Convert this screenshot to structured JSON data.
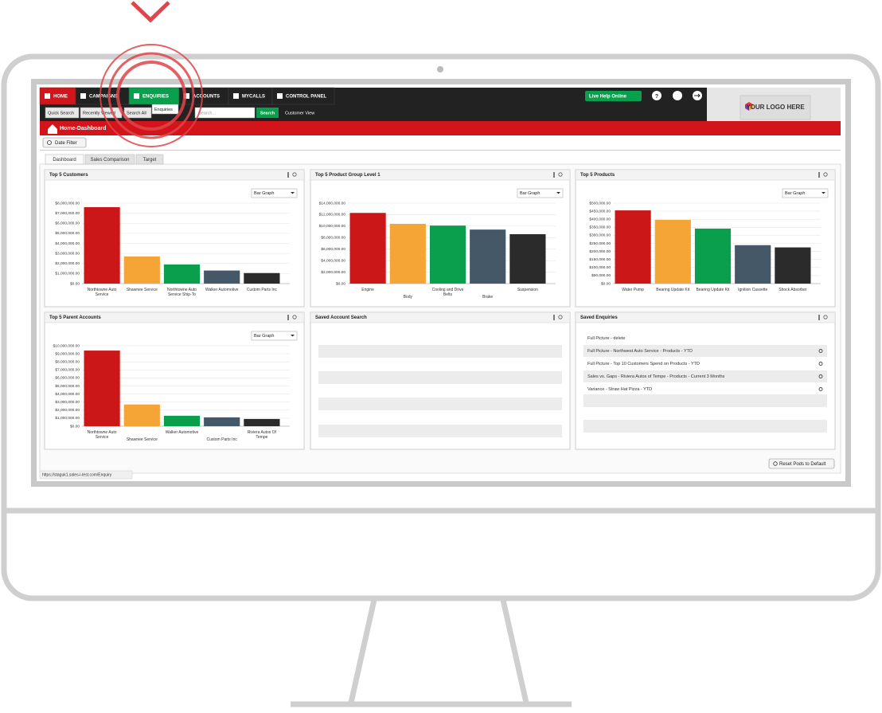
{
  "nav": {
    "items": [
      "HOME",
      "CAMPAIGNS",
      "ENQUIRIES",
      "ACCOUNTS",
      "MYCALLS",
      "CONTROL PANEL"
    ],
    "live_help": "Live Help Online",
    "tooltip": "Enquiries",
    "logo": "YOUR LOGO HERE"
  },
  "search": {
    "quick": "Quick Search",
    "recent": "Recently Viewed",
    "all": "Search All",
    "placeholder": "Search...",
    "button": "Search",
    "customer_view": "Customer View"
  },
  "breadcrumb": "Home-Dashboard",
  "date_filter": "Date Filter",
  "tabs": [
    "Dashboard",
    "Sales Comparison",
    "Target"
  ],
  "dropdown": "Bar Graph",
  "chart_data": [
    {
      "type": "bar",
      "title": "Top 5 Customers",
      "categories": [
        "Northtowne Auto Service",
        "Shawnee Service",
        "Northtowne Auto Service Ship-To",
        "Walker Automotive",
        "Custom Parts Inc"
      ],
      "values": [
        7600000,
        2700000,
        1900000,
        1300000,
        1050000
      ],
      "colors": [
        "#cc1719",
        "#f4a535",
        "#0a9f4c",
        "#455868",
        "#2b2b2b"
      ],
      "ylim": [
        0,
        8000000
      ],
      "yticks": [
        {
          "value": 0,
          "label": "$0.00"
        },
        {
          "value": 1000000,
          "label": "$1,000,000.00"
        },
        {
          "value": 2000000,
          "label": "$2,000,000.00"
        },
        {
          "value": 3000000,
          "label": "$3,000,000.00"
        },
        {
          "value": 4000000,
          "label": "$4,000,000.00"
        },
        {
          "value": 5000000,
          "label": "$5,000,000.00"
        },
        {
          "value": 6000000,
          "label": "$6,000,000.00"
        },
        {
          "value": 7000000,
          "label": "$7,000,000.00"
        },
        {
          "value": 8000000,
          "label": "$8,000,000.00"
        }
      ]
    },
    {
      "type": "bar",
      "title": "Top 5 Product Group Level 1",
      "categories": [
        "Engine",
        "Body",
        "Cooling and Drive Belts",
        "Brake",
        "Suspension"
      ],
      "values": [
        12300000,
        10400000,
        10100000,
        9400000,
        8600000
      ],
      "colors": [
        "#cc1719",
        "#f4a535",
        "#0a9f4c",
        "#455868",
        "#2b2b2b"
      ],
      "ylim": [
        0,
        14000000
      ],
      "yticks": [
        {
          "value": 0,
          "label": "$0.00"
        },
        {
          "value": 2000000,
          "label": "$2,000,000.00"
        },
        {
          "value": 4000000,
          "label": "$4,000,000.00"
        },
        {
          "value": 6000000,
          "label": "$6,000,000.00"
        },
        {
          "value": 8000000,
          "label": "$8,000,000.00"
        },
        {
          "value": 10000000,
          "label": "$10,000,000.00"
        },
        {
          "value": 12000000,
          "label": "$12,000,000.00"
        },
        {
          "value": 14000000,
          "label": "$14,000,000.00"
        }
      ]
    },
    {
      "type": "bar",
      "title": "Top 5 Products",
      "categories": [
        "Water Pump",
        "Bearing Update Kit",
        "Bearing Update Kit",
        "Ignition Cassette",
        "Shock Absorber"
      ],
      "values": [
        455000,
        396000,
        342000,
        239000,
        225000
      ],
      "colors": [
        "#cc1719",
        "#f4a535",
        "#0a9f4c",
        "#455868",
        "#2b2b2b"
      ],
      "ylim": [
        0,
        500000
      ],
      "yticks": [
        {
          "value": 0,
          "label": "$0.00"
        },
        {
          "value": 50000,
          "label": "$50,000.00"
        },
        {
          "value": 100000,
          "label": "$100,000.00"
        },
        {
          "value": 150000,
          "label": "$150,000.00"
        },
        {
          "value": 200000,
          "label": "$200,000.00"
        },
        {
          "value": 250000,
          "label": "$250,000.00"
        },
        {
          "value": 300000,
          "label": "$300,000.00"
        },
        {
          "value": 350000,
          "label": "$350,000.00"
        },
        {
          "value": 400000,
          "label": "$400,000.00"
        },
        {
          "value": 450000,
          "label": "$450,000.00"
        },
        {
          "value": 500000,
          "label": "$500,000.00"
        }
      ]
    },
    {
      "type": "bar",
      "title": "Top 5 Parent Accounts",
      "categories": [
        "Northtowne Auto Service",
        "Shawnee Service",
        "Walker Automotive",
        "Custom Parts Inc",
        "Riviera Autos Of Tempe"
      ],
      "values": [
        9400000,
        2700000,
        1300000,
        1100000,
        900000
      ],
      "colors": [
        "#cc1719",
        "#f4a535",
        "#0a9f4c",
        "#455868",
        "#2b2b2b"
      ],
      "ylim": [
        0,
        10000000
      ],
      "yticks": [
        {
          "value": 0,
          "label": "$0.00"
        },
        {
          "value": 1000000,
          "label": "$1,000,000.00"
        },
        {
          "value": 2000000,
          "label": "$2,000,000.00"
        },
        {
          "value": 3000000,
          "label": "$3,000,000.00"
        },
        {
          "value": 4000000,
          "label": "$4,000,000.00"
        },
        {
          "value": 5000000,
          "label": "$5,000,000.00"
        },
        {
          "value": 6000000,
          "label": "$6,000,000.00"
        },
        {
          "value": 7000000,
          "label": "$7,000,000.00"
        },
        {
          "value": 8000000,
          "label": "$8,000,000.00"
        },
        {
          "value": 9000000,
          "label": "$9,000,000.00"
        },
        {
          "value": 10000000,
          "label": "$10,000,000.00"
        }
      ]
    }
  ],
  "panels": {
    "saved_account_search": {
      "title": "Saved Account Search"
    },
    "saved_enquiries": {
      "title": "Saved Enquiries",
      "items": [
        "Full Picture - delete",
        "Full Picture - Northwest Auto Service - Products - YTD",
        "Full Picture - Top 10 Customers Spend on Products - YTD",
        "Sales vs. Gaps - Riviera Autos of Tempe - Products - Current 3 Months",
        "Variance - Straw Hat Pizza - YTD"
      ]
    }
  },
  "reset": "Reset Pods to Default",
  "status_url": "https://staguk1.sales-i-test.com/Enquiry"
}
